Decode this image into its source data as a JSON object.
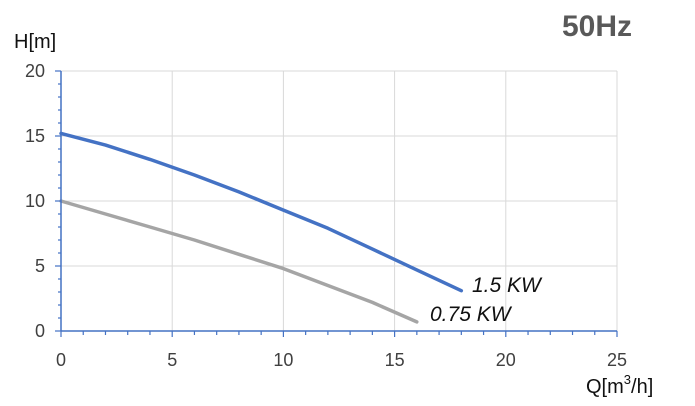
{
  "chart_data": {
    "type": "line",
    "title": "50Hz",
    "ylabel": "H[m]",
    "xlabel": {
      "base": "Q[m",
      "sup": "3",
      "tail": "/h]"
    },
    "xlim": [
      0,
      25
    ],
    "ylim": [
      0,
      20
    ],
    "xticks": [
      0,
      5,
      10,
      15,
      20,
      25
    ],
    "yticks": [
      0,
      5,
      10,
      15,
      20
    ],
    "grid": true,
    "legend": "inline labels at line ends",
    "series": [
      {
        "name": "1.5 KW",
        "color": "#4472C4",
        "x": [
          0,
          2,
          4,
          6,
          8,
          10,
          12,
          14,
          16,
          18
        ],
        "y": [
          15.2,
          14.3,
          13.2,
          12.0,
          10.7,
          9.3,
          7.9,
          6.3,
          4.7,
          3.1
        ]
      },
      {
        "name": "0.75 KW",
        "color": "#A5A5A5",
        "x": [
          0,
          2,
          4,
          6,
          8,
          10,
          12,
          14,
          16
        ],
        "y": [
          10.0,
          9.0,
          8.0,
          7.0,
          5.9,
          4.8,
          3.5,
          2.2,
          0.7
        ]
      }
    ]
  }
}
